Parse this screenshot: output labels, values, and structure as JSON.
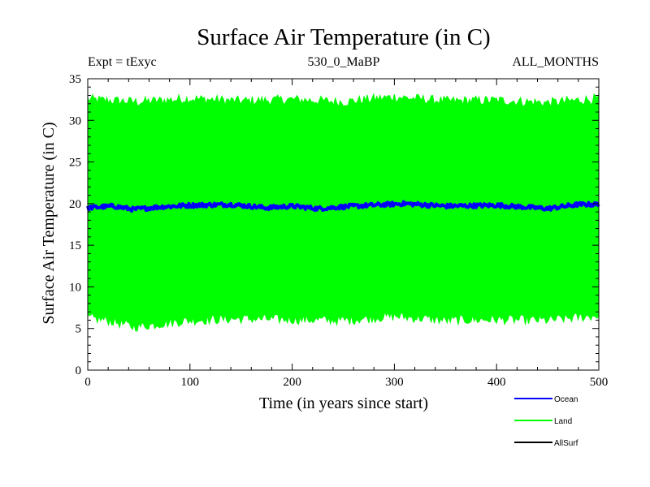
{
  "chart_data": {
    "type": "line",
    "title": "Surface Air Temperature (in C)",
    "subtitles": {
      "left": "Expt = tExyc",
      "center": "530_0_MaBP",
      "right": "ALL_MONTHS"
    },
    "xlabel": "Time (in years since start)",
    "ylabel": "Surface Air Temperature (in C)",
    "xlim": [
      0,
      500
    ],
    "ylim": [
      0,
      35
    ],
    "x_ticks": [
      0,
      100,
      200,
      300,
      400,
      500
    ],
    "y_ticks": [
      0,
      5,
      10,
      15,
      20,
      25,
      30,
      35
    ],
    "grid": false,
    "legend_position": "bottom-right",
    "series": [
      {
        "name": "Ocean",
        "color": "#0000ff",
        "keypoints": [
          {
            "x": 0,
            "y": 19.5
          },
          {
            "x": 25,
            "y": 19.7
          },
          {
            "x": 45,
            "y": 19.3
          },
          {
            "x": 70,
            "y": 19.6
          },
          {
            "x": 100,
            "y": 19.8
          },
          {
            "x": 140,
            "y": 19.9
          },
          {
            "x": 175,
            "y": 19.5
          },
          {
            "x": 200,
            "y": 19.7
          },
          {
            "x": 225,
            "y": 19.4
          },
          {
            "x": 260,
            "y": 19.7
          },
          {
            "x": 310,
            "y": 20.0
          },
          {
            "x": 350,
            "y": 19.7
          },
          {
            "x": 400,
            "y": 19.8
          },
          {
            "x": 450,
            "y": 19.4
          },
          {
            "x": 480,
            "y": 19.9
          },
          {
            "x": 500,
            "y": 19.9
          }
        ],
        "noise_amplitude": 0.25
      },
      {
        "name": "Land",
        "color": "#00ff00",
        "upper_envelope": [
          {
            "x": 0,
            "y": 32.5
          },
          {
            "x": 50,
            "y": 32.2
          },
          {
            "x": 100,
            "y": 32.6
          },
          {
            "x": 150,
            "y": 32.3
          },
          {
            "x": 200,
            "y": 32.5
          },
          {
            "x": 250,
            "y": 32.2
          },
          {
            "x": 300,
            "y": 32.8
          },
          {
            "x": 350,
            "y": 32.3
          },
          {
            "x": 400,
            "y": 32.4
          },
          {
            "x": 450,
            "y": 32.1
          },
          {
            "x": 500,
            "y": 32.6
          }
        ],
        "lower_envelope": [
          {
            "x": 0,
            "y": 6.3
          },
          {
            "x": 20,
            "y": 6.0
          },
          {
            "x": 45,
            "y": 5.2
          },
          {
            "x": 100,
            "y": 6.0
          },
          {
            "x": 150,
            "y": 6.2
          },
          {
            "x": 200,
            "y": 6.1
          },
          {
            "x": 250,
            "y": 6.0
          },
          {
            "x": 300,
            "y": 6.5
          },
          {
            "x": 350,
            "y": 6.0
          },
          {
            "x": 400,
            "y": 6.1
          },
          {
            "x": 450,
            "y": 6.0
          },
          {
            "x": 500,
            "y": 6.6
          }
        ],
        "noise_amplitude": 0.6
      },
      {
        "name": "AllSurf",
        "color": "#000000"
      }
    ]
  }
}
